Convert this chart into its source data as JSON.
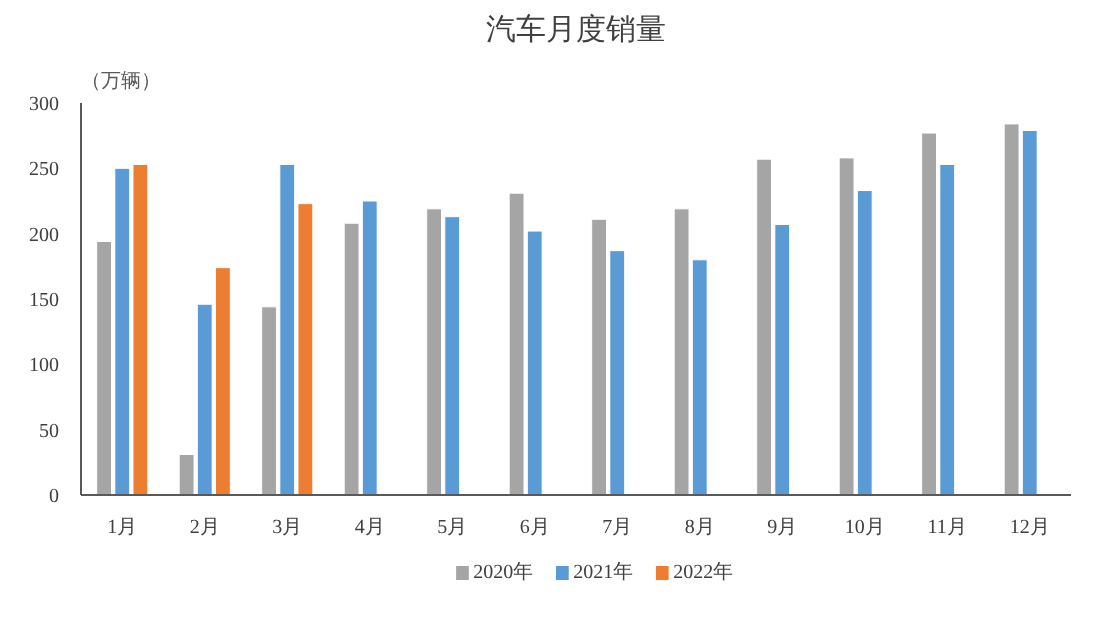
{
  "chart_data": {
    "type": "bar",
    "title": "汽车月度销量",
    "ylabel": "（万辆）",
    "categories": [
      "1月",
      "2月",
      "3月",
      "4月",
      "5月",
      "6月",
      "7月",
      "8月",
      "9月",
      "10月",
      "11月",
      "12月"
    ],
    "series": [
      {
        "name": "2020年",
        "color": "#a5a5a5",
        "values": [
          194,
          31,
          144,
          208,
          219,
          231,
          211,
          219,
          257,
          258,
          277,
          284
        ]
      },
      {
        "name": "2021年",
        "color": "#5b9bd5",
        "values": [
          250,
          146,
          253,
          225,
          213,
          202,
          187,
          180,
          207,
          233,
          253,
          279
        ]
      },
      {
        "name": "2022年",
        "color": "#ed7d31",
        "values": [
          253,
          174,
          223,
          null,
          null,
          null,
          null,
          null,
          null,
          null,
          null,
          null
        ]
      }
    ],
    "ylim": [
      0,
      300
    ],
    "yticks": [
      0,
      50,
      100,
      150,
      200,
      250,
      300
    ],
    "grid": false,
    "legend": "bottom"
  }
}
